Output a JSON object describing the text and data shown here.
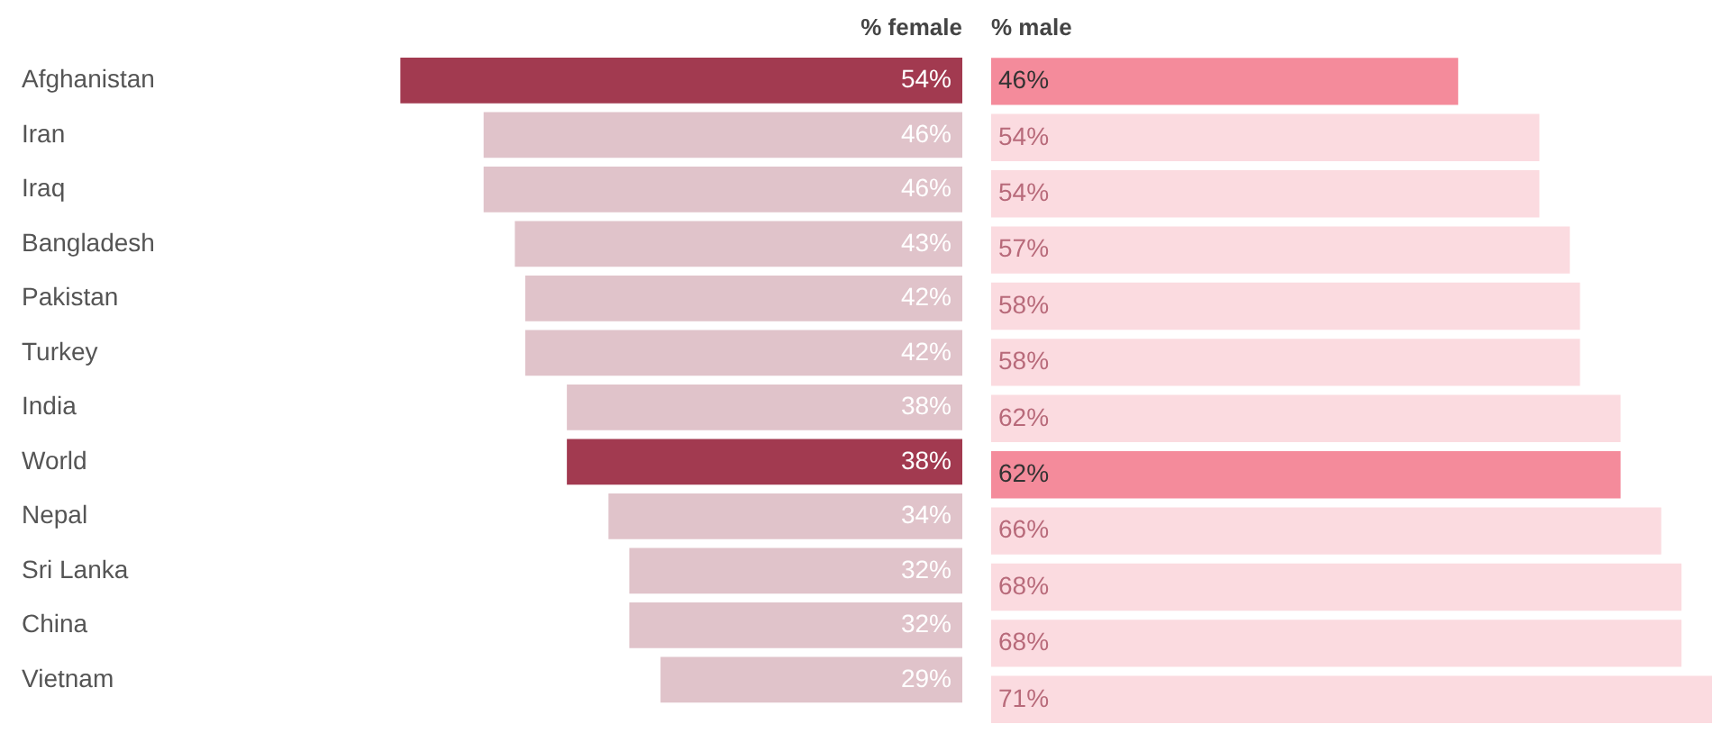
{
  "chart_data": [
    {
      "type": "bar",
      "orientation": "horizontal",
      "title": "% female",
      "tick_labels": "y",
      "legend": false,
      "grid": false,
      "categories": [
        "Afghanistan",
        "Iran",
        "Iraq",
        "Bangladesh",
        "Pakistan",
        "Turkey",
        "India",
        "World",
        "Nepal",
        "Sri Lanka",
        "China",
        "Vietnam"
      ],
      "values": [
        54,
        46,
        46,
        43,
        42,
        42,
        38,
        38,
        34,
        32,
        32,
        29
      ],
      "value_labels": [
        "54%",
        "46%",
        "46%",
        "43%",
        "42%",
        "42%",
        "38%",
        "38%",
        "34%",
        "32%",
        "32%",
        "29%"
      ],
      "colors": [
        "#a23a50",
        "#e0c3ca",
        "#e0c3ca",
        "#e0c3ca",
        "#e0c3ca",
        "#e0c3ca",
        "#e0c3ca",
        "#a23a50",
        "#e0c3ca",
        "#e0c3ca",
        "#e0c3ca",
        "#e0c3ca"
      ]
    },
    {
      "type": "bar",
      "orientation": "horizontal",
      "title": "% male",
      "tick_labels": false,
      "legend": false,
      "grid": false,
      "categories": [
        null,
        null,
        null,
        null,
        null,
        null,
        null,
        null,
        null,
        null,
        null,
        null
      ],
      "values": [
        46,
        54,
        54,
        57,
        58,
        58,
        62,
        62,
        66,
        68,
        68,
        71
      ],
      "value_labels": [
        "46%",
        "54%",
        "54%",
        "57%",
        "58%",
        "58%",
        "62%",
        "62%",
        "66%",
        "68%",
        "68%",
        "71%"
      ],
      "colors": [
        "#f48b9b",
        "#fbdbe0",
        "#fbdbe0",
        "#fbdbe0",
        "#fbdbe0",
        "#fbdbe0",
        "#fbdbe0",
        "#f48b9b",
        "#fbdbe0",
        "#fbdbe0",
        "#fbdbe0",
        "#fbdbe0"
      ]
    }
  ]
}
